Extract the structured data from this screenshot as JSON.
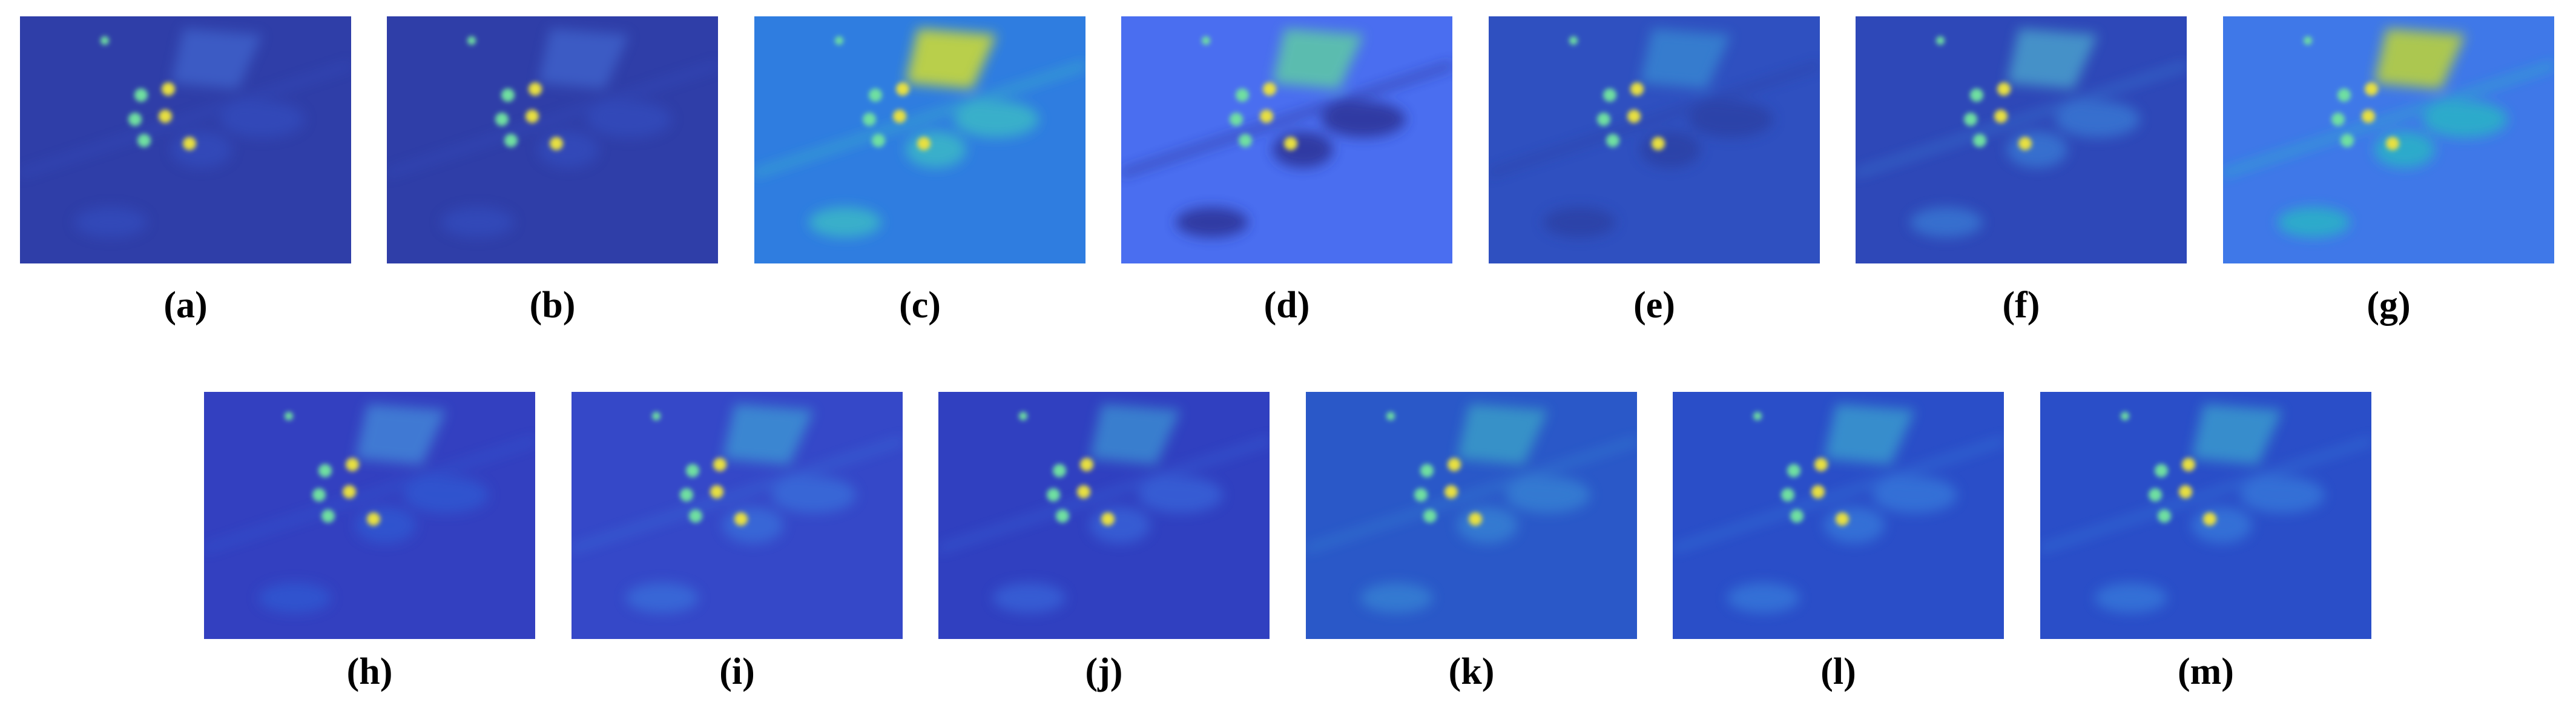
{
  "figure": {
    "panels": [
      {
        "label": "(a)"
      },
      {
        "label": "(b)"
      },
      {
        "label": "(c)"
      },
      {
        "label": "(d)"
      },
      {
        "label": "(e)"
      },
      {
        "label": "(f)"
      },
      {
        "label": "(g)"
      },
      {
        "label": "(h)"
      },
      {
        "label": "(i)"
      },
      {
        "label": "(j)"
      },
      {
        "label": "(k)"
      },
      {
        "label": "(l)"
      },
      {
        "label": "(m)"
      }
    ]
  }
}
